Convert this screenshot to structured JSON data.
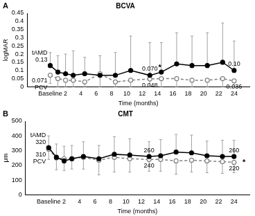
{
  "chart_data": [
    {
      "type": "line",
      "panel": "A",
      "title": "BCVA",
      "x_label": "Time (months)",
      "y_label": "logMAR",
      "x": [
        0,
        1,
        2,
        3,
        4.5,
        6.5,
        8.5,
        10.5,
        13,
        14.5,
        16.5,
        18.5,
        20.5,
        22.5,
        24
      ],
      "xlim": [
        -3,
        26
      ],
      "xticks": [
        {
          "value": 0,
          "label": "Baseline"
        },
        2,
        4,
        6,
        8,
        10,
        12,
        14,
        16,
        18,
        20,
        22,
        24
      ],
      "ylim": [
        0,
        0.45
      ],
      "yticks": [
        0,
        0.05,
        0.1,
        0.15,
        0.2,
        0.25,
        0.3,
        0.35,
        0.4,
        0.45
      ],
      "grid": false,
      "series": [
        {
          "name": "tAMD",
          "color": "#000000",
          "marker": "circle",
          "line_style": "solid",
          "values": [
            0.13,
            0.09,
            0.08,
            0.07,
            0.08,
            0.07,
            0.07,
            0.1,
            0.07,
            0.09,
            0.14,
            0.13,
            0.13,
            0.15,
            0.1
          ],
          "error_plus": [
            0.08,
            0.1,
            0.12,
            0.15,
            0.1,
            0.12,
            0.14,
            0.21,
            0.2,
            0.18,
            0.19,
            0.18,
            0.2,
            0.24,
            0.18
          ],
          "value_labels": [
            "0.13",
            null,
            null,
            null,
            null,
            null,
            null,
            null,
            "0.070",
            null,
            null,
            null,
            null,
            null,
            "0.10"
          ]
        },
        {
          "name": "PCV",
          "color": "#808080",
          "marker": "open_circle",
          "line_style": "dashed",
          "values": [
            0.071,
            0.05,
            0.04,
            0.04,
            0.03,
            0.08,
            0.03,
            0.04,
            0.048,
            0.05,
            0.05,
            0.04,
            0.04,
            0.05,
            0.036
          ],
          "error_minus": [
            0.05,
            0.05,
            0.04,
            0.04,
            0.03,
            0.08,
            0.03,
            0.04,
            0.048,
            0.05,
            0.05,
            0.04,
            0.04,
            0.05,
            0.036
          ],
          "value_labels": [
            "0.071",
            null,
            null,
            null,
            null,
            null,
            null,
            null,
            "0.048",
            null,
            null,
            null,
            null,
            null,
            "0.036"
          ]
        }
      ],
      "annotations": [
        {
          "text": "*",
          "x": 14.3,
          "y": 0.115
        }
      ]
    },
    {
      "type": "line",
      "panel": "B",
      "title": "CMT",
      "x_label": "Time (months)",
      "y_label": "μm",
      "x": [
        0,
        1,
        2,
        3,
        4.5,
        6.5,
        8.5,
        10.5,
        13,
        14.5,
        16.5,
        18.5,
        20.5,
        22.5,
        24
      ],
      "xlim": [
        -3,
        26
      ],
      "xticks": [
        {
          "value": 0,
          "label": "Baseline"
        },
        2,
        4,
        6,
        8,
        10,
        12,
        14,
        16,
        18,
        20,
        22,
        24
      ],
      "ylim": [
        0,
        500
      ],
      "yticks": [
        0,
        100,
        200,
        300,
        400,
        500
      ],
      "grid": false,
      "series": [
        {
          "name": "tAMD",
          "color": "#000000",
          "marker": "circle",
          "line_style": "solid",
          "values": [
            320,
            255,
            230,
            245,
            260,
            245,
            275,
            270,
            260,
            265,
            290,
            285,
            265,
            260,
            260
          ],
          "error_plus": [
            80,
            90,
            100,
            90,
            100,
            90,
            120,
            110,
            100,
            110,
            120,
            120,
            100,
            110,
            110
          ],
          "value_labels": [
            "320",
            null,
            null,
            null,
            null,
            null,
            null,
            null,
            "260",
            null,
            null,
            null,
            null,
            null,
            "260"
          ]
        },
        {
          "name": "PCV",
          "color": "#808080",
          "marker": "open_circle",
          "line_style": "dashed",
          "values": [
            310,
            250,
            245,
            245,
            255,
            235,
            255,
            245,
            240,
            240,
            230,
            235,
            230,
            225,
            220
          ],
          "error_minus": [
            70,
            80,
            80,
            70,
            80,
            100,
            100,
            90,
            80,
            80,
            90,
            80,
            80,
            80,
            70
          ],
          "value_labels": [
            "310",
            null,
            null,
            null,
            null,
            null,
            null,
            null,
            "240",
            null,
            null,
            null,
            null,
            null,
            "220"
          ]
        }
      ],
      "annotations": [
        {
          "text": "*",
          "x": 25.3,
          "y": 220
        }
      ]
    }
  ]
}
